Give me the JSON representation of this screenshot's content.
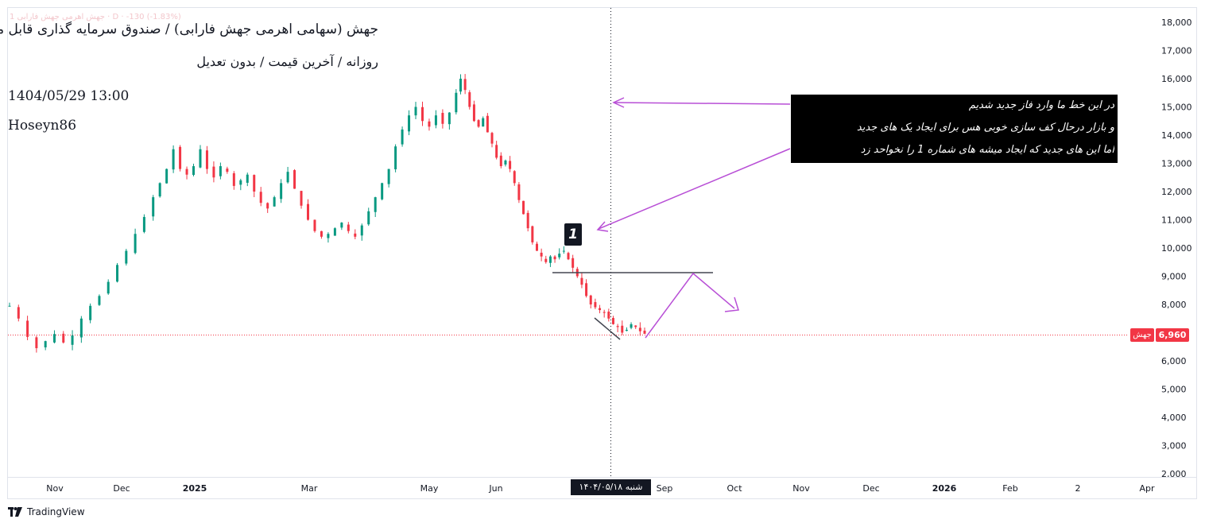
{
  "header": {
    "faded_legend": "1 جهش اهرمی جهش فارابی · D · -130 (-1.83%)",
    "title": "جهش (سهامی اهرمی جهش فارابی) / صندوق سرمایه گذاری قابل معامله",
    "subtitle": "روزانه / آخرین قیمت / بدون تعدیل",
    "datetime": "1404/05/29 13:00",
    "author": "Hoseyn86"
  },
  "annotation": {
    "lines": [
      "در این خط ما وارد فاز جدید شدیم",
      "و بازار درحال کف سازی خوبی هس برای ایجاد یک های جدید",
      "اما این های جدید که  ایجاد میشه های شماره 1 را نخواحد زد"
    ],
    "marker_label": "1"
  },
  "price_badge": {
    "symbol": "جهش",
    "value": "6,960"
  },
  "cursor_date": "شنبه ۱۴۰۴/۰۵/۱۸",
  "brand": "TradingView",
  "colors": {
    "up": "#089981",
    "down": "#f23645",
    "arrow": "#b84fd6",
    "line": "#434651"
  },
  "chart_data": {
    "type": "candlestick",
    "title": "جهش (سهامی اهرمی جهش فارابی) / صندوق سرمایه گذاری قابل معامله",
    "interval": "روزانه",
    "ylim": [
      2000,
      18000
    ],
    "y_ticks": [
      "18,000",
      "17,000",
      "16,000",
      "15,000",
      "14,000",
      "13,000",
      "12,000",
      "11,000",
      "10,000",
      "9,000",
      "8,000",
      "7,000",
      "6,000",
      "5,000",
      "4,000",
      "3,000",
      "2,000"
    ],
    "y_tick_values": [
      18000,
      17000,
      16000,
      15000,
      14000,
      13000,
      12000,
      11000,
      10000,
      9000,
      8000,
      7000,
      6000,
      5000,
      4000,
      3000,
      2000
    ],
    "x_ticks": [
      {
        "label": "Nov",
        "bold": false
      },
      {
        "label": "Dec",
        "bold": false
      },
      {
        "label": "2025",
        "bold": true
      },
      {
        "label": "Mar",
        "bold": false
      },
      {
        "label": "May",
        "bold": false
      },
      {
        "label": "Jun",
        "bold": false
      },
      {
        "label": "Sep",
        "bold": false
      },
      {
        "label": "Oct",
        "bold": false
      },
      {
        "label": "Nov",
        "bold": false
      },
      {
        "label": "Dec",
        "bold": false
      },
      {
        "label": "2026",
        "bold": true
      },
      {
        "label": "Feb",
        "bold": false
      },
      {
        "label": "2",
        "bold": false
      },
      {
        "label": "Apr",
        "bold": false
      }
    ],
    "last_price": 6960,
    "support_level": 9100,
    "series_path_approx": [
      [
        0,
        7950
      ],
      [
        8,
        7500
      ],
      [
        16,
        6850
      ],
      [
        24,
        6450
      ],
      [
        32,
        6700
      ],
      [
        40,
        6950
      ],
      [
        48,
        6650
      ],
      [
        56,
        6900
      ],
      [
        64,
        7500
      ],
      [
        72,
        7950
      ],
      [
        80,
        8300
      ],
      [
        88,
        8800
      ],
      [
        96,
        9400
      ],
      [
        104,
        9900
      ],
      [
        112,
        10500
      ],
      [
        120,
        11100
      ],
      [
        128,
        11800
      ],
      [
        134,
        12300
      ],
      [
        140,
        12800
      ],
      [
        146,
        13500
      ],
      [
        152,
        12800
      ],
      [
        158,
        12600
      ],
      [
        164,
        12900
      ],
      [
        170,
        13500
      ],
      [
        176,
        12800
      ],
      [
        182,
        12500
      ],
      [
        188,
        12900
      ],
      [
        194,
        12700
      ],
      [
        200,
        12200
      ],
      [
        206,
        12400
      ],
      [
        212,
        12600
      ],
      [
        218,
        12000
      ],
      [
        224,
        11600
      ],
      [
        230,
        11400
      ],
      [
        236,
        11800
      ],
      [
        242,
        12300
      ],
      [
        248,
        12700
      ],
      [
        254,
        12100
      ],
      [
        260,
        11500
      ],
      [
        266,
        11000
      ],
      [
        272,
        10600
      ],
      [
        278,
        10400
      ],
      [
        284,
        10500
      ],
      [
        290,
        10700
      ],
      [
        296,
        10900
      ],
      [
        302,
        10600
      ],
      [
        308,
        10400
      ],
      [
        314,
        10800
      ],
      [
        320,
        11300
      ],
      [
        326,
        11800
      ],
      [
        332,
        12300
      ],
      [
        338,
        12800
      ],
      [
        344,
        13600
      ],
      [
        350,
        14200
      ],
      [
        356,
        14700
      ],
      [
        362,
        15000
      ],
      [
        368,
        14500
      ],
      [
        374,
        14300
      ],
      [
        380,
        14700
      ],
      [
        386,
        14400
      ],
      [
        392,
        14800
      ],
      [
        398,
        15500
      ],
      [
        402,
        16000
      ],
      [
        406,
        15600
      ],
      [
        410,
        15000
      ],
      [
        414,
        14500
      ],
      [
        418,
        14300
      ],
      [
        422,
        14600
      ],
      [
        426,
        14100
      ],
      [
        430,
        13700
      ],
      [
        434,
        13200
      ],
      [
        438,
        12900
      ],
      [
        442,
        13100
      ],
      [
        446,
        12800
      ],
      [
        450,
        12300
      ],
      [
        454,
        11700
      ],
      [
        458,
        11200
      ],
      [
        462,
        10700
      ],
      [
        466,
        10200
      ],
      [
        470,
        9900
      ],
      [
        474,
        9700
      ],
      [
        478,
        9500
      ],
      [
        482,
        9700
      ],
      [
        486,
        9600
      ],
      [
        490,
        9800
      ],
      [
        494,
        9900
      ],
      [
        498,
        9600
      ],
      [
        502,
        9300
      ],
      [
        506,
        9000
      ],
      [
        510,
        8700
      ],
      [
        514,
        8300
      ],
      [
        518,
        8000
      ],
      [
        522,
        7900
      ],
      [
        526,
        7800
      ],
      [
        530,
        7700
      ],
      [
        534,
        7500
      ],
      [
        538,
        7300
      ],
      [
        542,
        7200
      ],
      [
        546,
        7000
      ],
      [
        550,
        7100
      ],
      [
        554,
        7300
      ],
      [
        558,
        7200
      ],
      [
        562,
        7050
      ],
      [
        566,
        6960
      ]
    ]
  }
}
